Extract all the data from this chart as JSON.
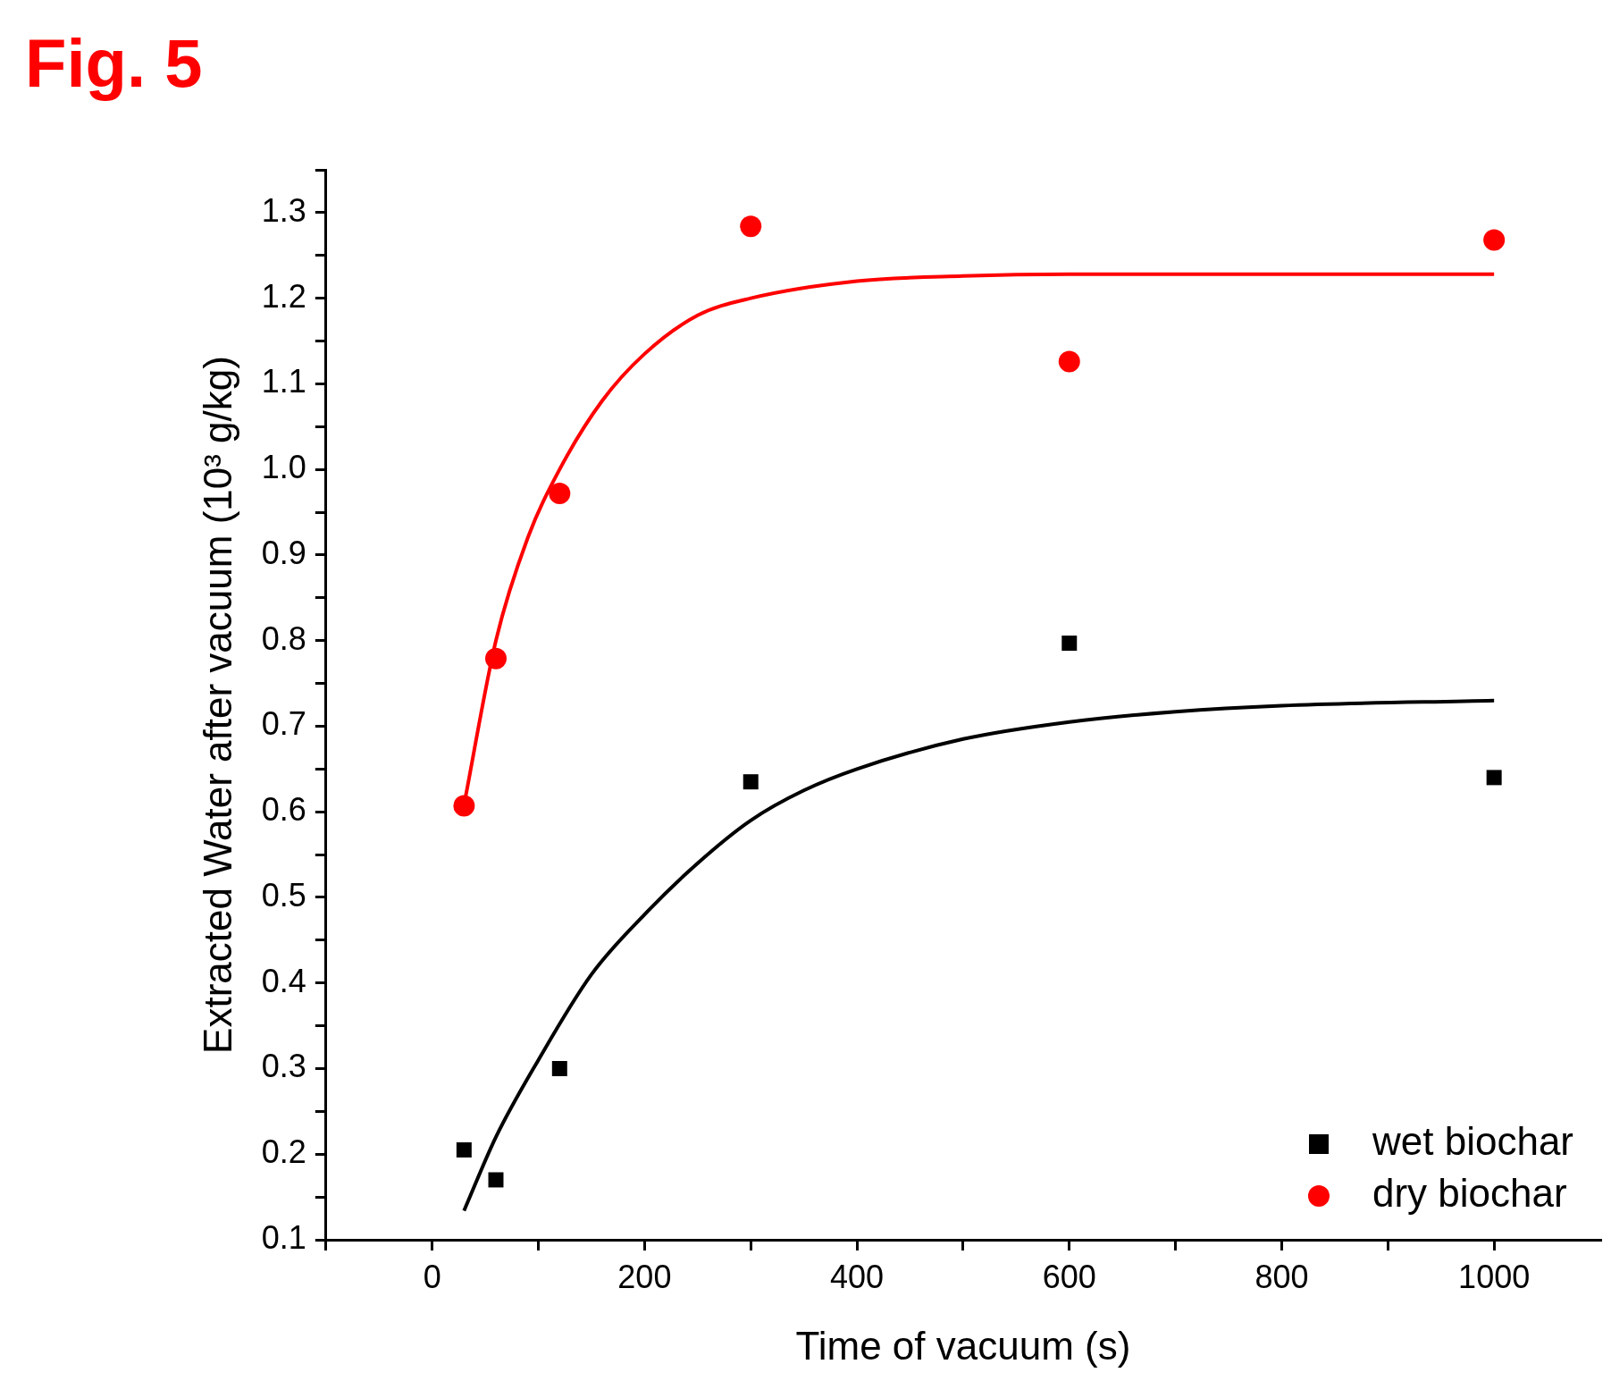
{
  "chart_data": {
    "type": "scatter",
    "title": "Fig. 5",
    "xlabel": "Time of vacuum (s)",
    "ylabel": "Extracted Water after vacuum (10³ g/kg)",
    "xlim": [
      -100,
      1100
    ],
    "xticks": [
      {
        "value": -100,
        "label": null
      },
      0,
      {
        "value": 100,
        "label": null
      },
      200,
      {
        "value": 300,
        "label": null
      },
      400,
      {
        "value": 500,
        "label": null
      },
      600,
      {
        "value": 700,
        "label": null
      },
      800,
      {
        "value": 900,
        "label": null
      },
      1000
    ],
    "ylim": [
      0.1,
      1.35
    ],
    "yticks": [
      {
        "value": 0.1,
        "label": "0.1"
      },
      {
        "value": 0.15,
        "label": null
      },
      {
        "value": 0.2,
        "label": "0.2"
      },
      {
        "value": 0.25,
        "label": null
      },
      {
        "value": 0.3,
        "label": "0.3"
      },
      {
        "value": 0.35,
        "label": null
      },
      {
        "value": 0.4,
        "label": "0.4"
      },
      {
        "value": 0.45,
        "label": null
      },
      {
        "value": 0.5,
        "label": "0.5"
      },
      {
        "value": 0.55,
        "label": null
      },
      {
        "value": 0.6,
        "label": "0.6"
      },
      {
        "value": 0.65,
        "label": null
      },
      {
        "value": 0.7,
        "label": "0.7"
      },
      {
        "value": 0.75,
        "label": null
      },
      {
        "value": 0.8,
        "label": "0.8"
      },
      {
        "value": 0.85,
        "label": null
      },
      {
        "value": 0.9,
        "label": "0.9"
      },
      {
        "value": 0.95,
        "label": null
      },
      {
        "value": 1.0,
        "label": "1.0"
      },
      {
        "value": 1.05,
        "label": null
      },
      {
        "value": 1.1,
        "label": "1.1"
      },
      {
        "value": 1.15,
        "label": null
      },
      {
        "value": 1.2,
        "label": "1.2"
      },
      {
        "value": 1.25,
        "label": null
      },
      {
        "value": 1.3,
        "label": "1.3"
      },
      {
        "value": 1.35,
        "label": null
      }
    ],
    "grid": false,
    "legend": "bottom right",
    "series": [
      {
        "name": "wet biochar",
        "type": "scatter",
        "marker": "square",
        "color": "#000000",
        "x": [
          30,
          60,
          120,
          300,
          600,
          1000
        ],
        "values": [
          0.205,
          0.17,
          0.3,
          0.635,
          0.797,
          0.64
        ]
      },
      {
        "name": "dry biochar",
        "type": "scatter",
        "marker": "circle",
        "color": "#ff0000",
        "x": [
          30,
          60,
          120,
          300,
          600,
          1000
        ],
        "values": [
          0.607,
          0.779,
          0.972,
          1.284,
          1.126,
          1.268
        ]
      },
      {
        "type": "line",
        "marker": "none",
        "line_style": "solid",
        "color": "#000000",
        "x": [
          30,
          60,
          100,
          150,
          200,
          250,
          300,
          350,
          400,
          500,
          600,
          700,
          800,
          1000
        ],
        "values": [
          0.134,
          0.22,
          0.31,
          0.41,
          0.48,
          0.54,
          0.59,
          0.625,
          0.65,
          0.685,
          0.705,
          0.717,
          0.724,
          0.73
        ]
      },
      {
        "type": "line",
        "marker": "none",
        "line_style": "solid",
        "color": "#ff0000",
        "x": [
          30,
          60,
          90,
          120,
          160,
          200,
          250,
          300,
          400,
          500,
          600,
          1000
        ],
        "values": [
          0.608,
          0.8,
          0.92,
          1.0,
          1.08,
          1.135,
          1.18,
          1.2,
          1.22,
          1.226,
          1.228,
          1.228
        ]
      }
    ]
  }
}
